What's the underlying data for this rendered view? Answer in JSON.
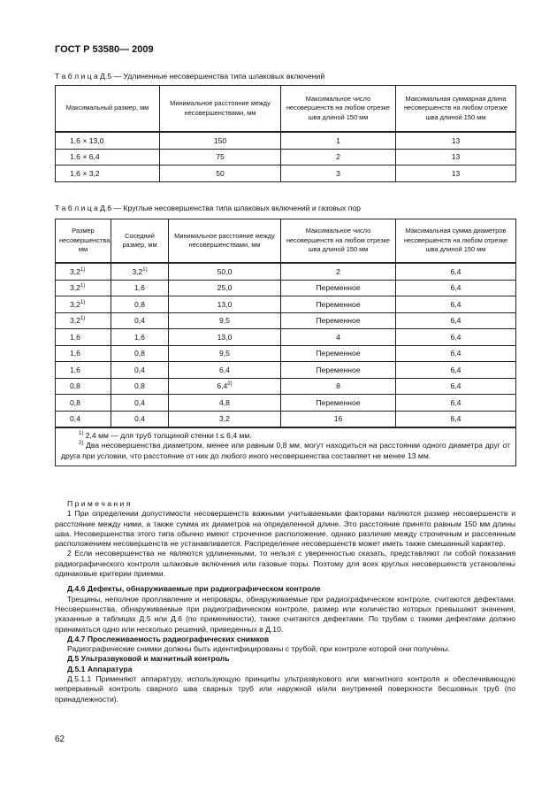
{
  "header": "ГОСТ Р 53580— 2009",
  "table5": {
    "caption": "Т а б л и ц а Д.5 — Удлиненные несовершенства типа шлаковых включений",
    "headers": [
      "Максимальный размер, мм",
      "Минимальное расстояние между несовершенствами, мм",
      "Максимальное число несовершенств на любом отрезке шва длиной 150 мм",
      "Максимальная суммарная длина несовершенств на любом отрезке шва длиной 150 мм"
    ],
    "rows": [
      [
        "1,6 × 13,0",
        "150",
        "1",
        "13"
      ],
      [
        "1,6 × 6,4",
        "75",
        "2",
        "13"
      ],
      [
        "1,6 × 3,2",
        "50",
        "3",
        "13"
      ]
    ]
  },
  "table6": {
    "caption": "Т а б л и ц а Д.6 — Круглые несовершенства типа шлаковых включений и газовых пор",
    "headers": [
      "Размер несовершенства, мм",
      "Соседний размер, мм",
      "Минимальное расстояние между несовершенствами, мм",
      "Максимальное число несовершенств на любом отрезке шва длиной 150 мм",
      "Максимальная сумма диаметров несовершенств на любом отрезке шва длиной 150 мм"
    ],
    "rows": [
      [
        {
          "text": "3,2",
          "sup": "1)"
        },
        {
          "text": "3,2",
          "sup": "1)"
        },
        "50,0",
        "2",
        "6,4"
      ],
      [
        {
          "text": "3,2",
          "sup": "1)"
        },
        "1,6",
        "25,0",
        "Переменное",
        "6,4"
      ],
      [
        {
          "text": "3,2",
          "sup": "1)"
        },
        "0,8",
        "13,0",
        "Переменное",
        "6,4"
      ],
      [
        {
          "text": "3,2",
          "sup": "1)"
        },
        "0,4",
        "9,5",
        "Переменное",
        "6,4"
      ],
      [
        "1,6",
        "1,6",
        "13,0",
        "4",
        "6,4"
      ],
      [
        "1,6",
        "0,8",
        "9,5",
        "Переменное",
        "6,4"
      ],
      [
        "1,6",
        "0,4",
        "6,4",
        "Переменное",
        "6,4"
      ],
      [
        "0,8",
        "0,8",
        {
          "text": "6,4",
          "sup": "2)"
        },
        "8",
        "6,4"
      ],
      [
        "0,8",
        "0,4",
        "4,8",
        "Переменное",
        "6,4"
      ],
      [
        "0,4",
        "0,4",
        "3,2",
        "16",
        "6,4"
      ]
    ],
    "footnotes": [
      {
        "mark": "1)",
        "text": "2,4 мм — для труб толщиной стенки t ≤ 6,4 мм."
      },
      {
        "mark": "2)",
        "text": "Два несовершенства диаметром, менее или равным 0,8 мм, могут находиться на расстоянии одного диаметра друг от друга при условии, что расстояние от них до любого иного несовершенства составляет не менее 13 мм."
      }
    ]
  },
  "notes": {
    "title": "П р и м е ч а н и я",
    "items": [
      "1 При определении допустимости несовершенств важными учитываемыми факторами являются размер несовершенств и расстояние между ними, а также сумма их диаметров на определенной длине. Это расстояние принято равным 150 мм длины шва. Несовершенства этого типа обычно имеют строчечное расположение, однако различие между строчечным и рассеянным расположением несовершенств не устанавливается. Распределение несовершенств может иметь также смешанный характер.",
      "2 Если несовершенства не являются удлиненными, то нельзя с уверенностью сказать, представляют ли собой показания радиографического контроля шлаковые включения или газовые поры. Поэтому для всех круглых несовершенств установлены одинаковые критерии приемки."
    ]
  },
  "sections": [
    {
      "heading": "Д.4.6 Дефекты, обнаруживаемые при радиографическом контроле",
      "text": "Трещины, неполное проплавление и непровары, обнаруживаемые при радиографическом контроле, считаются дефектами. Несовершенства, обнаруживаемые при радиографическом контроле, размер или количество которых превышают значения, указанные в таблицах Д.5 или Д.6 (по применимости), также считаются дефектами. По трубам с такими дефектами должно приниматься одно или несколько решений, приведенных в Д.10."
    },
    {
      "heading": "Д.4.7 Прослеживаемость радиографических снимков",
      "text": "Радиографические снимки должны быть идентифицированы с трубой, при контроле которой они получены."
    },
    {
      "heading": "Д.5 Ультразвуковой и магнитный контроль"
    },
    {
      "heading": "Д.5.1 Аппаратура"
    },
    {
      "text": "Д.5.1.1 Применяют аппаратуру, использующую принципы ультразвукового или магнитного контроля и обеспечивающую непрерывный контроль сварного шва сварных труб или наружной и/или внутренней поверхности бесшовных труб (по принадлежности)."
    }
  ],
  "page_number": "62"
}
